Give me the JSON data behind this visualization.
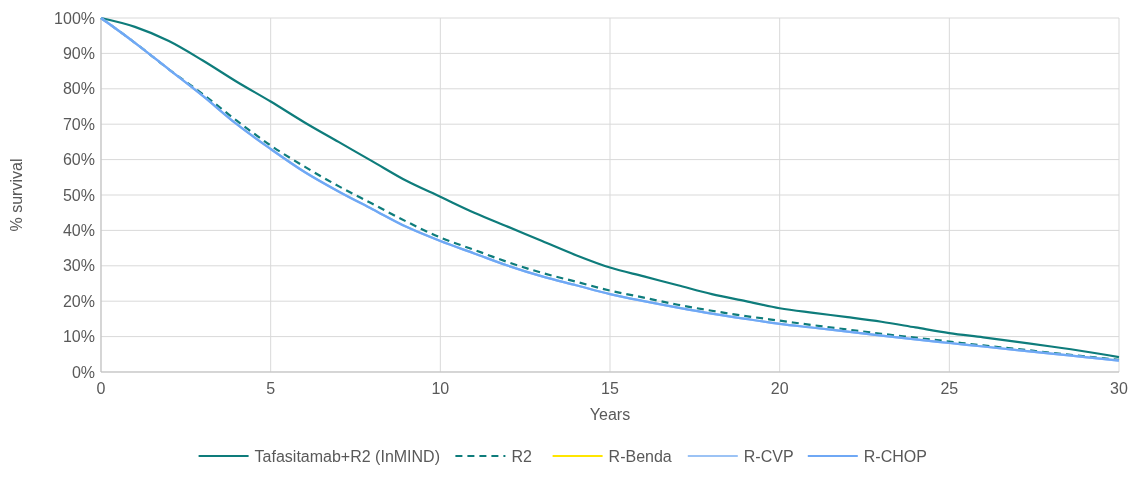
{
  "chart_data": {
    "type": "line",
    "xlabel": "Years",
    "ylabel": "% survival",
    "x": [
      0,
      1,
      2,
      3,
      4,
      5,
      6,
      7,
      8,
      9,
      10,
      11,
      12,
      13,
      14,
      15,
      16,
      17,
      18,
      19,
      20,
      21,
      22,
      23,
      24,
      25,
      26,
      27,
      28,
      29,
      30
    ],
    "xlim": [
      0,
      30
    ],
    "xticks": [
      0,
      5,
      10,
      15,
      20,
      25,
      30
    ],
    "ylim": [
      0,
      100
    ],
    "yticks": [
      {
        "value": 0,
        "label": "0%"
      },
      {
        "value": 10,
        "label": "10%"
      },
      {
        "value": 20,
        "label": "20%"
      },
      {
        "value": 30,
        "label": "30%"
      },
      {
        "value": 40,
        "label": "40%"
      },
      {
        "value": 50,
        "label": "50%"
      },
      {
        "value": 60,
        "label": "60%"
      },
      {
        "value": 70,
        "label": "70%"
      },
      {
        "value": 80,
        "label": "80%"
      },
      {
        "value": 90,
        "label": "90%"
      },
      {
        "value": 100,
        "label": "100%"
      }
    ],
    "grid": true,
    "legend": "bottom",
    "marker": "none",
    "series": [
      {
        "name": "Tafasitamab+R2 (InMIND)",
        "color": "#0e7c7b",
        "line_style": "solid",
        "values": [
          100,
          97.5,
          93.5,
          88,
          82,
          76.4,
          70.5,
          65,
          59.5,
          54,
          49.5,
          45,
          41,
          37,
          33,
          29.5,
          27,
          24.5,
          22,
          20,
          18,
          16.7,
          15.5,
          14.2,
          12.6,
          11,
          9.8,
          8.5,
          7.2,
          5.8,
          4.2
        ]
      },
      {
        "name": "R2",
        "color": "#0e7c7b",
        "line_style": "dashed",
        "values": [
          100,
          93,
          85.5,
          78.5,
          71,
          64,
          58,
          52.5,
          47.5,
          42.5,
          38,
          34.5,
          31,
          28,
          25.5,
          23,
          21,
          19,
          17.3,
          15.8,
          14.5,
          13.2,
          12,
          10.8,
          9.7,
          8.6,
          7.5,
          6.5,
          5.4,
          4.4,
          3.4
        ]
      },
      {
        "name": "R-Benda",
        "color": "#ffe600",
        "line_style": "solid",
        "values": [
          null,
          null,
          null,
          null,
          null,
          null,
          null,
          null,
          null,
          null,
          null,
          null,
          null,
          null,
          null,
          null,
          null,
          null,
          null,
          null,
          null,
          null,
          null,
          null,
          null,
          null,
          null,
          null,
          null,
          null,
          null
        ]
      },
      {
        "name": "R-CVP",
        "color": "#9cc3f5",
        "line_style": "solid",
        "values": [
          100,
          93,
          85.5,
          78,
          70,
          63,
          56.5,
          51,
          46,
          41,
          37,
          33.5,
          30,
          27,
          24.5,
          22,
          20,
          18.2,
          16.5,
          15,
          13.6,
          12.5,
          11.4,
          10.3,
          9.2,
          8.2,
          7.2,
          6.2,
          5.2,
          4.2,
          3.2
        ]
      },
      {
        "name": "R-CHOP",
        "color": "#6fa8f5",
        "line_style": "solid",
        "values": [
          100,
          93,
          85.5,
          78,
          70,
          63,
          56.5,
          51,
          46,
          41,
          37,
          33.5,
          30,
          27,
          24.5,
          22,
          20,
          18.2,
          16.5,
          15,
          13.6,
          12.5,
          11.4,
          10.3,
          9.2,
          8.2,
          7.2,
          6.2,
          5.2,
          4.2,
          3.2
        ]
      }
    ]
  }
}
